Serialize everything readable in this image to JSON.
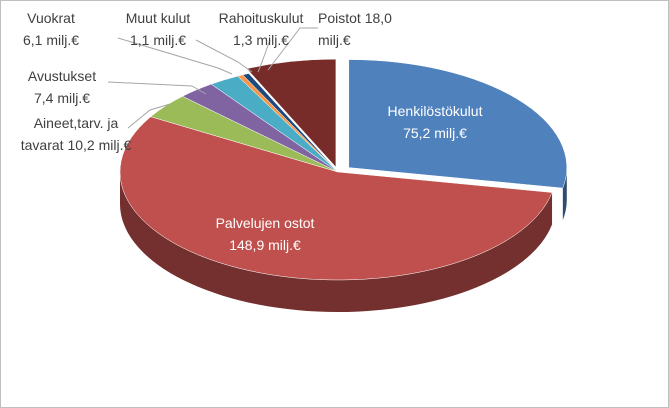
{
  "chart_data": {
    "type": "pie",
    "categories": [
      "Henkilöstökulut",
      "Palvelujen ostot",
      "Aineet,tarv. ja tavarat",
      "Avustukset",
      "Vuokrat",
      "Muut kulut",
      "Rahoituskulut",
      "Poistot"
    ],
    "values": [
      75.2,
      148.9,
      10.2,
      7.4,
      6.1,
      1.1,
      1.3,
      18.0
    ],
    "value_labels": [
      "75,2 milj.€",
      "148,9 milj.€",
      "10,2 milj.€",
      "7,4 milj.€",
      "6,1 milj.€",
      "1,1 milj.€",
      "1,3 milj.€",
      "18,0 milj.€"
    ],
    "colors": [
      "#4f81bd",
      "#c0504d",
      "#9bbb59",
      "#8064a2",
      "#4bacc6",
      "#f79646",
      "#1f497d",
      "#772c2a"
    ]
  }
}
